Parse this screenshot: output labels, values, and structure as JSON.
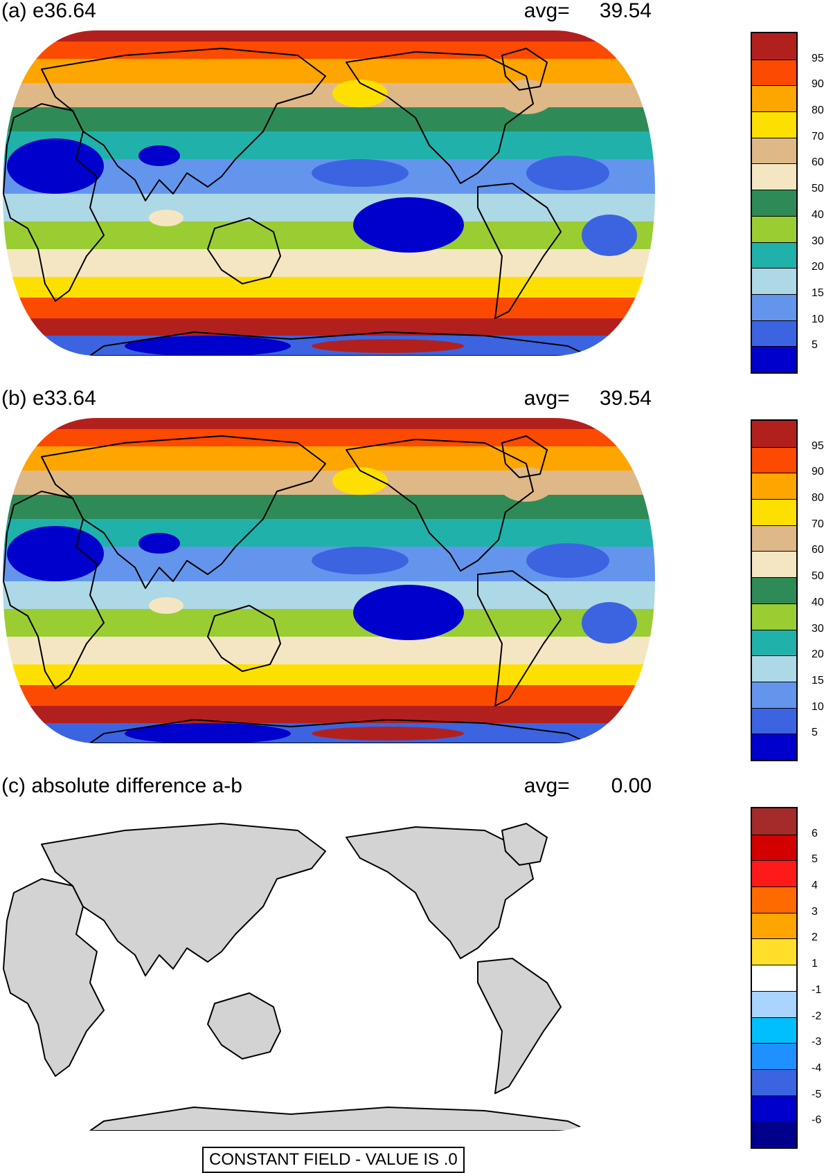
{
  "panels": [
    {
      "title": "(a) e36.64",
      "avg_label": "avg=",
      "avg_value": "39.54",
      "colorbar": {
        "ticks": [
          "95",
          "90",
          "80",
          "70",
          "60",
          "50",
          "40",
          "30",
          "20",
          "15",
          "10",
          "5"
        ],
        "colors": [
          "#b2201e",
          "#fc4a00",
          "#fea500",
          "#fee000",
          "#deb887",
          "#f5e6c3",
          "#2e8b57",
          "#9acd32",
          "#20b2aa",
          "#add8e6",
          "#6495ed",
          "#3c64e0",
          "#0000cd"
        ]
      },
      "map": "field"
    },
    {
      "title": "(b) e33.64",
      "avg_label": "avg=",
      "avg_value": "39.54",
      "colorbar": {
        "ticks": [
          "95",
          "90",
          "80",
          "70",
          "60",
          "50",
          "40",
          "30",
          "20",
          "15",
          "10",
          "5"
        ],
        "colors": [
          "#b2201e",
          "#fc4a00",
          "#fea500",
          "#fee000",
          "#deb887",
          "#f5e6c3",
          "#2e8b57",
          "#9acd32",
          "#20b2aa",
          "#add8e6",
          "#6495ed",
          "#3c64e0",
          "#0000cd"
        ]
      },
      "map": "field"
    },
    {
      "title": "(c) absolute difference a-b",
      "avg_label": "avg=",
      "avg_value": "0.00",
      "colorbar": {
        "ticks": [
          "6",
          "5",
          "4",
          "3",
          "2",
          "1",
          "-1",
          "-2",
          "-3",
          "-4",
          "-5",
          "-6"
        ],
        "colors": [
          "#a52a2a",
          "#d40000",
          "#ff1a1a",
          "#ff6a00",
          "#fea500",
          "#ffdf2a",
          "#ffffff",
          "#a8d4ff",
          "#00bfff",
          "#1e90ff",
          "#3a64e0",
          "#0000cd",
          "#00008b"
        ]
      },
      "map": "difference",
      "annotation": "CONSTANT FIELD - VALUE IS .0"
    }
  ],
  "land_color": "#d3d3d3",
  "coast_color": "#000000"
}
